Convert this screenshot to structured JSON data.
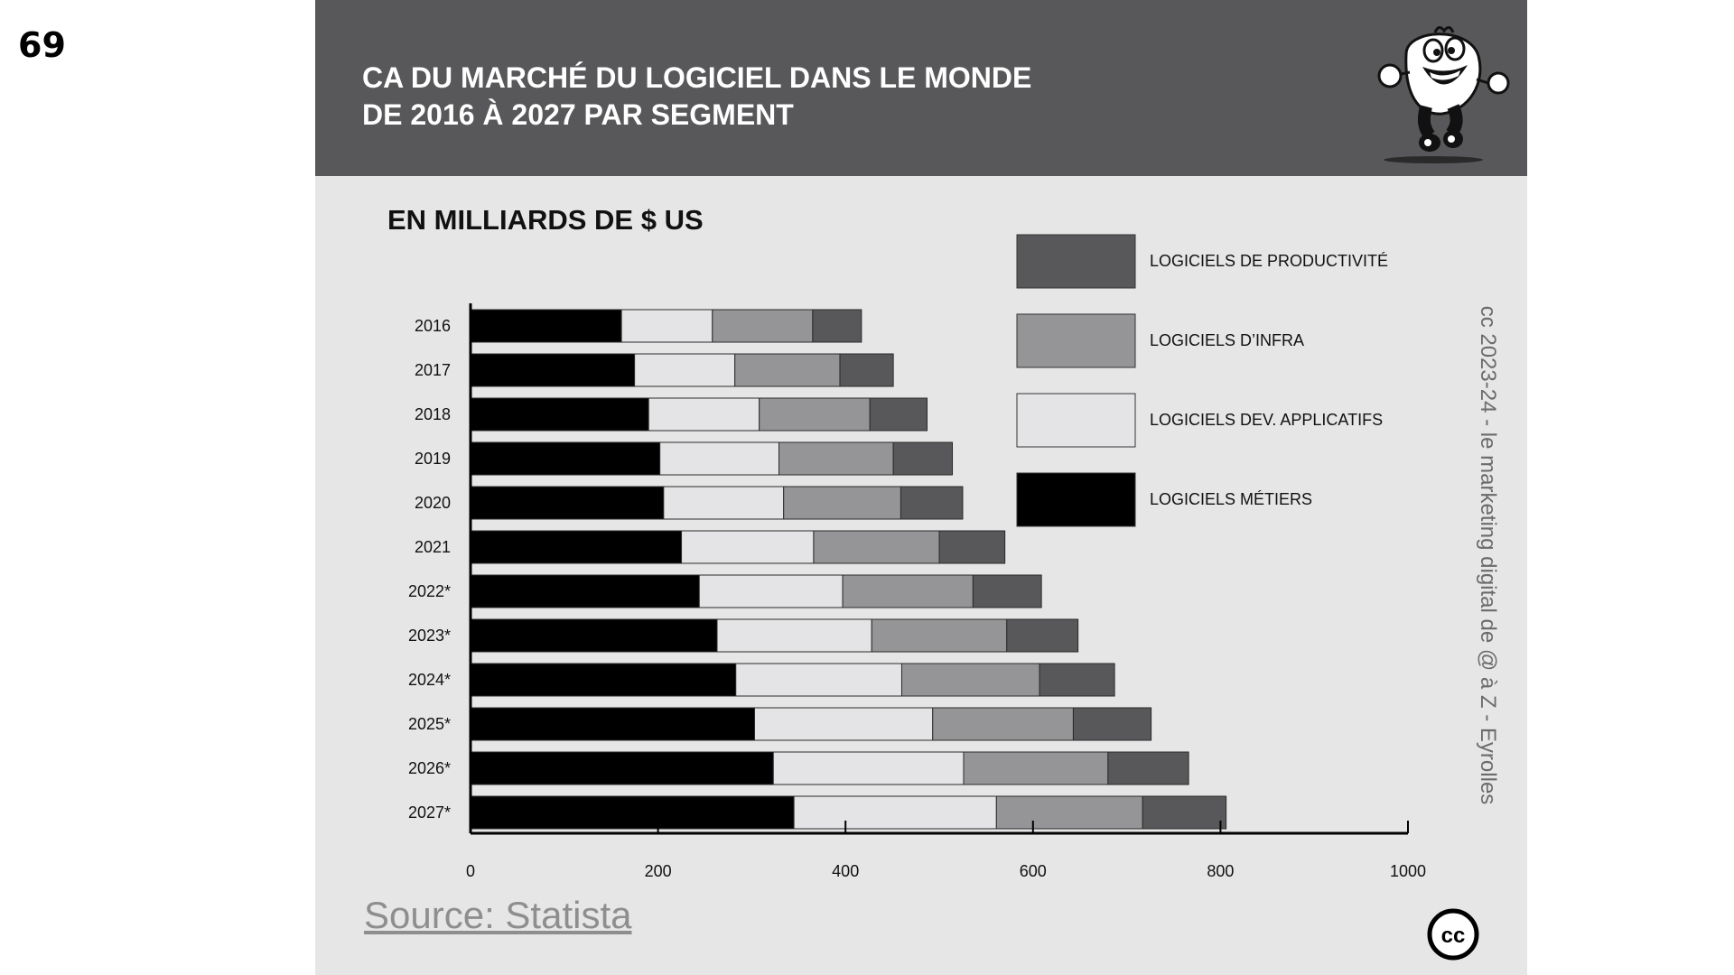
{
  "page_number": "69",
  "slide": {
    "title_lines": [
      "CA DU MARCHÉ DU LOGICIEL DANS LE MONDE",
      "DE 2016 À 2027 PAR SEGMENT"
    ],
    "credit": "cc 2023-24 - le marketing digital de @ à Z - Eyrolles",
    "source": "Source: Statista",
    "cc_label": "cc"
  },
  "chart_data": {
    "type": "bar",
    "orientation": "horizontal",
    "stacked": true,
    "subtitle": "EN MILLIARDS DE $ US",
    "categories": [
      "2016",
      "2017",
      "2018",
      "2019",
      "2020",
      "2021",
      "2022*",
      "2023*",
      "2024*",
      "2025*",
      "2026*",
      "2027*"
    ],
    "xlim": [
      0,
      1000
    ],
    "xticks": [
      0,
      200,
      400,
      600,
      800,
      1000
    ],
    "grid": false,
    "legend_position": "top-right",
    "series": [
      {
        "name": "LOGICIELS MÉTIERS",
        "color": "#000000",
        "values": [
          161,
          175,
          190,
          202,
          206,
          225,
          244,
          263,
          283,
          303,
          323,
          345
        ]
      },
      {
        "name": "LOGICIELS DEV. APPLICATIFS",
        "color": "#e4e4e6",
        "values": [
          97,
          107,
          118,
          127,
          128,
          141,
          153,
          165,
          177,
          190,
          203,
          216
        ]
      },
      {
        "name": "LOGICIELS D’INFRA",
        "color": "#959597",
        "values": [
          107,
          112,
          118,
          122,
          125,
          134,
          139,
          144,
          147,
          150,
          154,
          156
        ]
      },
      {
        "name": "LOGICIELS DE PRODUCTIVITÉ",
        "color": "#58585a",
        "values": [
          52,
          57,
          61,
          63,
          66,
          70,
          73,
          76,
          80,
          83,
          86,
          89
        ]
      }
    ],
    "legend_order": [
      "LOGICIELS DE PRODUCTIVITÉ",
      "LOGICIELS D’INFRA",
      "LOGICIELS DEV. APPLICATIFS",
      "LOGICIELS MÉTIERS"
    ]
  }
}
